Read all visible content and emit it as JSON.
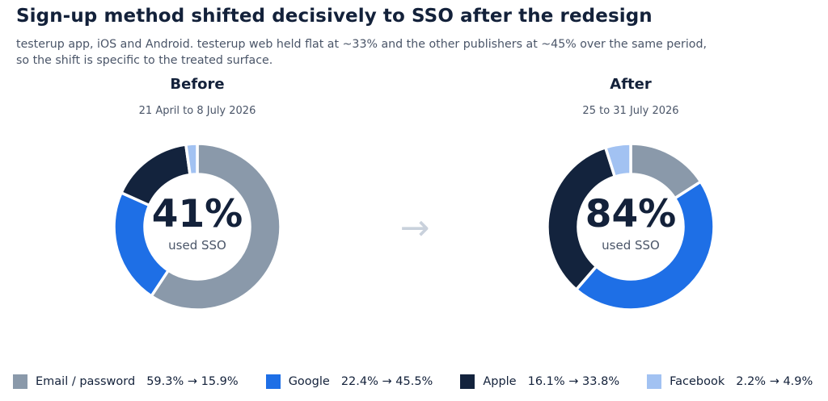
{
  "chart_data": {
    "type": "pie",
    "variant": "donut",
    "title": "Sign-up method shifted decisively to SSO after the redesign",
    "subtitle_lines": [
      "testerup app, iOS and Android. testerup web held flat at ~33% and the other publishers at ~45% over the same period,",
      "so the shift is specific to the treated surface."
    ],
    "categories": [
      "Email / password",
      "Google",
      "Apple",
      "Facebook"
    ],
    "colors": [
      "#8a99aa",
      "#1e6fe6",
      "#13233d",
      "#a2c2f2"
    ],
    "panels": [
      {
        "title": "Before",
        "range": "21 April to 8 July 2026",
        "center_value": "41%",
        "center_label": "used SSO",
        "values": [
          59.3,
          22.4,
          16.1,
          2.2
        ]
      },
      {
        "title": "After",
        "range": "25 to 31 July 2026",
        "center_value": "84%",
        "center_label": "used SSO",
        "values": [
          15.9,
          45.5,
          33.8,
          4.9
        ]
      }
    ],
    "legend_placement": "bottom",
    "legend": [
      {
        "name": "Email / password",
        "text": "59.3%  →  15.9%"
      },
      {
        "name": "Google",
        "text": "22.4%  →  45.5%"
      },
      {
        "name": "Apple",
        "text": "16.1%  →  33.8%"
      },
      {
        "name": "Facebook",
        "text": "2.2%  →  4.9%"
      }
    ],
    "arrow": "→"
  }
}
